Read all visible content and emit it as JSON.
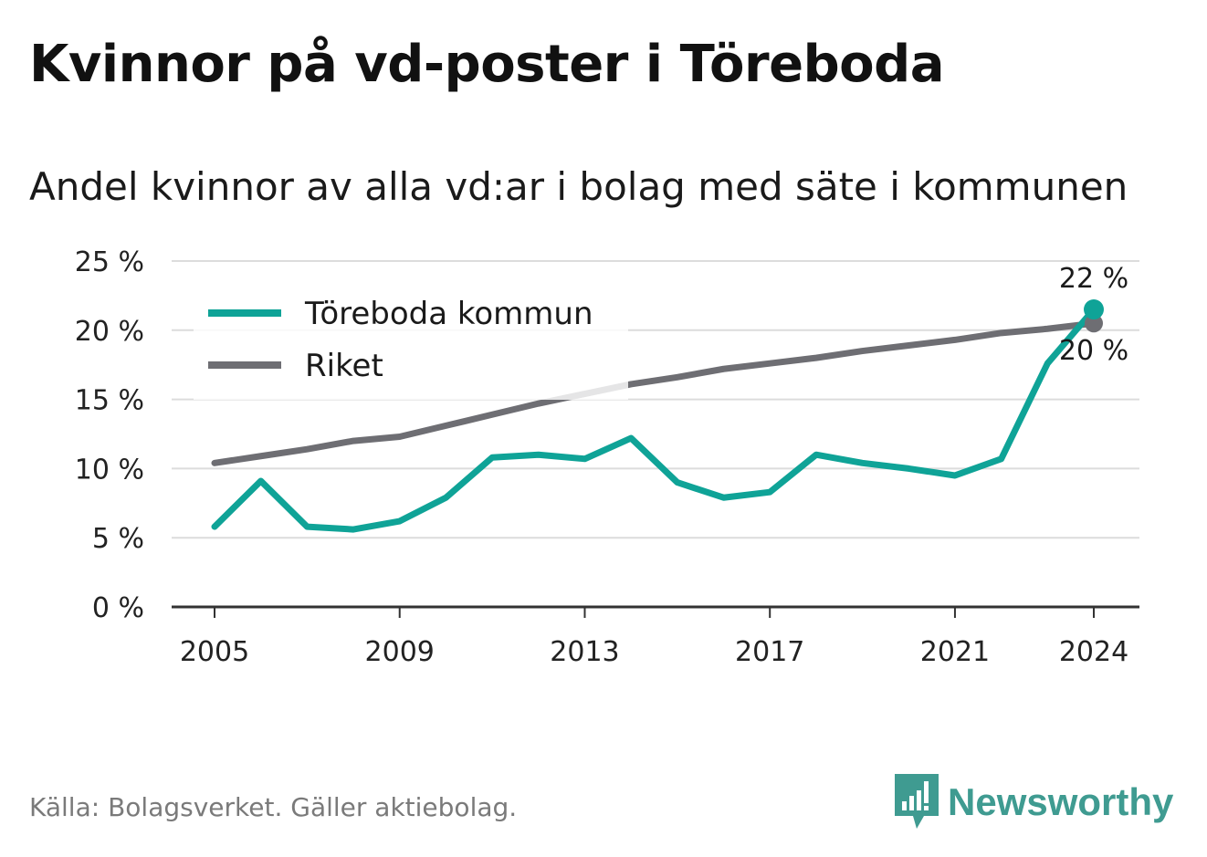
{
  "title": "Kvinnor på vd-poster i Töreboda",
  "subtitle": "Andel kvinnor av alla vd:ar i bolag med säte i kommunen",
  "source": "Källa: Bolagsverket. Gäller aktiebolag.",
  "brand": "Newsworthy",
  "chart_data": {
    "type": "line",
    "title": "Kvinnor på vd-poster i Töreboda",
    "subtitle": "Andel kvinnor av alla vd:ar i bolag med säte i kommunen",
    "xlabel": "",
    "ylabel": "",
    "x": [
      2005,
      2006,
      2007,
      2008,
      2009,
      2010,
      2011,
      2012,
      2013,
      2014,
      2015,
      2016,
      2017,
      2018,
      2019,
      2020,
      2021,
      2022,
      2023,
      2024
    ],
    "x_ticks": [
      "2005",
      "2009",
      "2013",
      "2017",
      "2021",
      "2024"
    ],
    "y_ticks": [
      "0 %",
      "5 %",
      "10 %",
      "15 %",
      "20 %",
      "25 %"
    ],
    "ylim": [
      0,
      25
    ],
    "grid": "horizontal",
    "legend_position": "top-left",
    "series": [
      {
        "name": "Töreboda kommun",
        "color": "#0fa397",
        "values": [
          5.8,
          9.1,
          5.8,
          5.6,
          6.2,
          7.9,
          10.8,
          11.0,
          10.7,
          12.2,
          9.0,
          7.9,
          8.3,
          11.0,
          10.4,
          10.0,
          9.5,
          10.7,
          17.6,
          21.5
        ],
        "end_label": "22 %"
      },
      {
        "name": "Riket",
        "color": "#6e6e73",
        "values": [
          10.4,
          10.9,
          11.4,
          12.0,
          12.3,
          13.1,
          13.9,
          14.7,
          15.4,
          16.1,
          16.6,
          17.2,
          17.6,
          18.0,
          18.5,
          18.9,
          19.3,
          19.8,
          20.1,
          20.5
        ],
        "end_label": "20 %"
      }
    ]
  }
}
